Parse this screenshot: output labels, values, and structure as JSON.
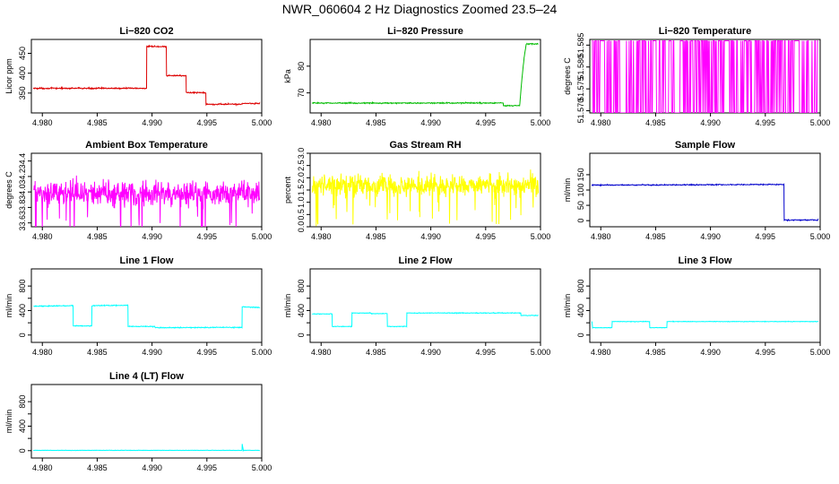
{
  "figure": {
    "title": "NWR_060604  2 Hz Diagnostics Zoomed 23.5–24"
  },
  "chart_data": [
    {
      "type": "line",
      "title": "Li−820 CO2",
      "ylabel": "Licor ppm",
      "xlabel": "",
      "color": "#dd0000",
      "xlim": [
        4.979,
        5.0
      ],
      "ylim": [
        300,
        485
      ],
      "xticks": [
        4.98,
        4.985,
        4.99,
        4.995,
        5.0
      ],
      "xticklabels": [
        "4.980",
        "4.985",
        "4.990",
        "4.995",
        "5.000"
      ],
      "yticks": [
        350,
        400,
        450
      ],
      "yticklabels": [
        "350",
        "400",
        "450"
      ],
      "x": [
        4.9792,
        4.9895,
        4.98952,
        4.9913,
        4.99132,
        4.9931,
        4.99312,
        4.9949,
        4.99492,
        4.9982,
        4.99822,
        4.9998
      ],
      "y": [
        362,
        362,
        467,
        467,
        394,
        394,
        351,
        351,
        322,
        322,
        324,
        324
      ],
      "noise": 1.2
    },
    {
      "type": "line",
      "title": "Li−820 Pressure",
      "ylabel": "kPa",
      "xlabel": "",
      "color": "#00bb00",
      "xlim": [
        4.979,
        5.0
      ],
      "ylim": [
        62.5,
        90
      ],
      "xticks": [
        4.98,
        4.985,
        4.99,
        4.995,
        5.0
      ],
      "xticklabels": [
        "4.980",
        "4.985",
        "4.990",
        "4.995",
        "5.000"
      ],
      "yticks": [
        70,
        80
      ],
      "yticklabels": [
        "70",
        "80"
      ],
      "x": [
        4.9792,
        4.9966,
        4.99662,
        4.9981,
        4.9983,
        4.9985,
        4.9987,
        4.9998
      ],
      "y": [
        66.2,
        66.2,
        65.2,
        65.2,
        75,
        83,
        88.3,
        88.3
      ],
      "noise": 0.15
    },
    {
      "type": "line",
      "title": "Li−820 Temperature",
      "ylabel": "degrees C",
      "xlabel": "",
      "color": "#ff00ff",
      "xlim": [
        4.979,
        5.0
      ],
      "ylim": [
        51.5695,
        51.5863
      ],
      "xticks": [
        4.98,
        4.985,
        4.99,
        4.995,
        5.0
      ],
      "xticklabels": [
        "4.980",
        "4.985",
        "4.990",
        "4.995",
        "5.000"
      ],
      "yticks": [
        51.57,
        51.575,
        51.58,
        51.585
      ],
      "yticklabels": [
        "51.570",
        "51.575",
        "51.580",
        "51.585"
      ],
      "levels": [
        51.5695,
        51.586
      ],
      "x_range": [
        4.9792,
        4.9998
      ],
      "note": "quantized signal toggling between two levels"
    },
    {
      "type": "line",
      "title": "Ambient Box Temperature",
      "ylabel": "degrees C",
      "xlabel": "",
      "color": "#ff00ff",
      "xlim": [
        4.979,
        5.0
      ],
      "ylim": [
        33.55,
        34.5
      ],
      "xticks": [
        4.98,
        4.985,
        4.99,
        4.995,
        5.0
      ],
      "xticklabels": [
        "4.980",
        "4.985",
        "4.990",
        "4.995",
        "5.000"
      ],
      "yticks": [
        33.6,
        33.8,
        34.0,
        34.2,
        34.4
      ],
      "yticklabels": [
        "33.6",
        "33.8",
        "34.0",
        "34.2",
        "34.4"
      ],
      "mean": 33.98,
      "noise": 0.12,
      "x_range": [
        4.9792,
        4.9998
      ]
    },
    {
      "type": "line",
      "title": "Gas Stream RH",
      "ylabel": "percent",
      "xlabel": "",
      "color": "#ffff00",
      "xlim": [
        4.979,
        5.0
      ],
      "ylim": [
        0,
        3.0
      ],
      "xticks": [
        4.98,
        4.985,
        4.99,
        4.995,
        5.0
      ],
      "xticklabels": [
        "4.980",
        "4.985",
        "4.990",
        "4.995",
        "5.000"
      ],
      "yticks": [
        0.0,
        0.5,
        1.0,
        1.5,
        2.0,
        2.5,
        3.0
      ],
      "yticklabels": [
        "0.0",
        "0.5",
        "1.0",
        "1.5",
        "2.0",
        "2.5",
        "3.0"
      ],
      "mean": 1.7,
      "noise": 0.35,
      "x_range": [
        4.9792,
        4.9998
      ]
    },
    {
      "type": "line",
      "title": "Sample Flow",
      "ylabel": "ml/min",
      "xlabel": "",
      "color": "#0000cc",
      "xlim": [
        4.979,
        5.0
      ],
      "ylim": [
        -20,
        220
      ],
      "xticks": [
        4.98,
        4.985,
        4.99,
        4.995,
        5.0
      ],
      "xticklabels": [
        "4.980",
        "4.985",
        "4.990",
        "4.995",
        "5.000"
      ],
      "yticks": [
        0,
        50,
        100,
        150
      ],
      "yticklabels": [
        "0",
        "50",
        "100",
        "150"
      ],
      "x": [
        4.9792,
        4.9967,
        4.99672,
        4.9998
      ],
      "y": [
        116,
        118,
        2,
        2
      ],
      "noise": 1.2
    },
    {
      "type": "line",
      "title": "Line 1 Flow",
      "ylabel": "ml/min",
      "xlabel": "",
      "color": "#00ffff",
      "xlim": [
        4.979,
        5.0
      ],
      "ylim": [
        -120,
        1080
      ],
      "xticks": [
        4.98,
        4.985,
        4.99,
        4.995,
        5.0
      ],
      "xticklabels": [
        "4.980",
        "4.985",
        "4.990",
        "4.995",
        "5.000"
      ],
      "yticks": [
        0,
        200,
        400,
        600,
        800
      ],
      "yticklabels": [
        "0",
        "400",
        "800"
      ],
      "ytick_label_values": [
        0,
        400,
        800
      ],
      "x": [
        4.9792,
        4.9828,
        4.98282,
        4.9845,
        4.98452,
        4.9878,
        4.98782,
        4.9902,
        4.9903,
        4.9982,
        4.99822,
        4.9998
      ],
      "y": [
        470,
        480,
        150,
        150,
        480,
        485,
        140,
        140,
        120,
        125,
        460,
        450
      ],
      "noise": 5
    },
    {
      "type": "line",
      "title": "Line 2 Flow",
      "ylabel": "ml/min",
      "xlabel": "",
      "color": "#00ffff",
      "xlim": [
        4.979,
        5.0
      ],
      "ylim": [
        -120,
        1080
      ],
      "xticks": [
        4.98,
        4.985,
        4.99,
        4.995,
        5.0
      ],
      "xticklabels": [
        "4.980",
        "4.985",
        "4.990",
        "4.995",
        "5.000"
      ],
      "yticks": [
        0,
        200,
        400,
        600,
        800
      ],
      "yticklabels": [
        "0",
        "400",
        "800"
      ],
      "ytick_label_values": [
        0,
        400,
        800
      ],
      "x": [
        4.9792,
        4.981,
        4.98102,
        4.9828,
        4.98282,
        4.9845,
        4.9846,
        4.98602,
        4.98604,
        4.9878,
        4.98782,
        4.9982,
        4.99822,
        4.9998
      ],
      "y": [
        345,
        345,
        140,
        140,
        360,
        360,
        350,
        350,
        140,
        140,
        360,
        360,
        320,
        320
      ],
      "noise": 4
    },
    {
      "type": "line",
      "title": "Line 3 Flow",
      "ylabel": "ml/min",
      "xlabel": "",
      "color": "#00ffff",
      "xlim": [
        4.979,
        5.0
      ],
      "ylim": [
        -120,
        1080
      ],
      "xticks": [
        4.98,
        4.985,
        4.99,
        4.995,
        5.0
      ],
      "xticklabels": [
        "4.980",
        "4.985",
        "4.990",
        "4.995",
        "5.000"
      ],
      "yticks": [
        0,
        200,
        400,
        600,
        800
      ],
      "yticklabels": [
        "0",
        "400",
        "800"
      ],
      "ytick_label_values": [
        0,
        400,
        800
      ],
      "x": [
        4.9792,
        4.97925,
        4.98102,
        4.98104,
        4.98445,
        4.98447,
        4.98602,
        4.98604,
        4.9998
      ],
      "y": [
        220,
        120,
        120,
        220,
        220,
        120,
        120,
        220,
        220
      ],
      "noise": 3
    },
    {
      "type": "line",
      "title": "Line 4 (LT) Flow",
      "ylabel": "ml/min",
      "xlabel": "",
      "color": "#00ffff",
      "xlim": [
        4.979,
        5.0
      ],
      "ylim": [
        -120,
        1080
      ],
      "xticks": [
        4.98,
        4.985,
        4.99,
        4.995,
        5.0
      ],
      "xticklabels": [
        "4.980",
        "4.985",
        "4.990",
        "4.995",
        "5.000"
      ],
      "yticks": [
        0,
        200,
        400,
        600,
        800
      ],
      "yticklabels": [
        "0",
        "400",
        "800"
      ],
      "ytick_label_values": [
        0,
        400,
        800
      ],
      "x": [
        4.9792,
        4.9982,
        4.99822,
        4.99832,
        4.99834,
        4.9998
      ],
      "y": [
        5,
        5,
        110,
        5,
        5,
        5
      ],
      "noise": 2
    }
  ]
}
